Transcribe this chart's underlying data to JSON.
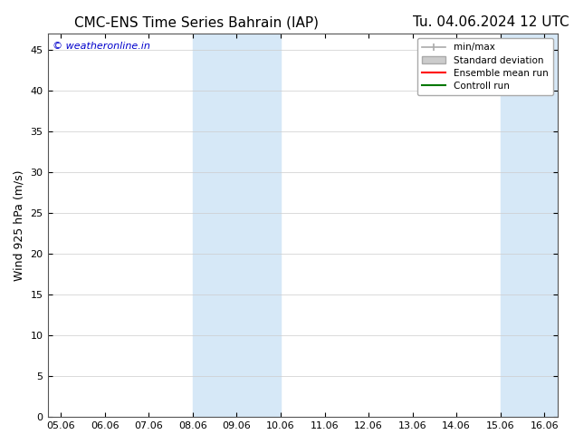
{
  "title_left": "CMC-ENS Time Series Bahrain (IAP)",
  "title_right": "Tu. 04.06.2024 12 UTC",
  "ylabel": "Wind 925 hPa (m/s)",
  "watermark": "© weatheronline.in",
  "watermark_color": "#0000cc",
  "ylim": [
    0,
    47
  ],
  "yticks": [
    0,
    5,
    10,
    15,
    20,
    25,
    30,
    35,
    40,
    45
  ],
  "xtick_labels": [
    "05.06",
    "06.06",
    "07.06",
    "08.06",
    "09.06",
    "10.06",
    "11.06",
    "12.06",
    "13.06",
    "14.06",
    "15.06",
    "16.06"
  ],
  "xtick_values": [
    0,
    1,
    2,
    3,
    4,
    5,
    6,
    7,
    8,
    9,
    10,
    11
  ],
  "xlim": [
    -0.3,
    11.3
  ],
  "shaded_regions": [
    {
      "x_start": 3.0,
      "x_end": 4.0,
      "color": "#d6e8f7"
    },
    {
      "x_start": 4.0,
      "x_end": 5.0,
      "color": "#d6e8f7"
    },
    {
      "x_start": 10.0,
      "x_end": 11.0,
      "color": "#d6e8f7"
    },
    {
      "x_start": 11.0,
      "x_end": 11.3,
      "color": "#d6e8f7"
    }
  ],
  "legend_entries": [
    {
      "label": "min/max",
      "color": "#aaaaaa",
      "lw": 1.2,
      "style": "|-|"
    },
    {
      "label": "Standard deviation",
      "color": "#cccccc",
      "lw": 6
    },
    {
      "label": "Ensemble mean run",
      "color": "#ff0000",
      "lw": 1.5
    },
    {
      "label": "Controll run",
      "color": "#007700",
      "lw": 1.5
    }
  ],
  "background_color": "#ffffff",
  "grid_color": "#cccccc",
  "title_fontsize": 11,
  "axis_fontsize": 9,
  "tick_fontsize": 8
}
